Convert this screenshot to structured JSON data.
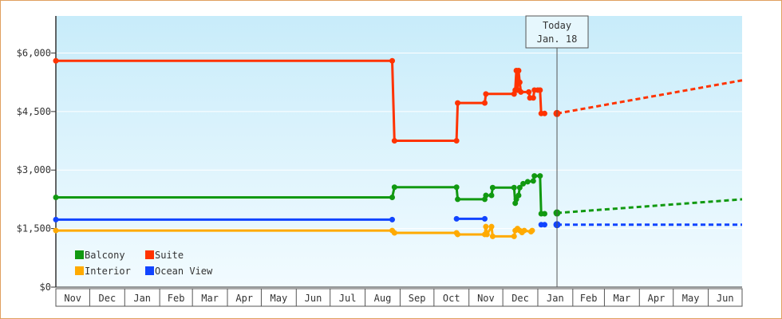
{
  "chart_data": {
    "type": "line",
    "today": {
      "date": "2025-01-18",
      "label_line1": "Today",
      "label_line2": "Jan. 18"
    },
    "y_ticks": [
      "$0",
      "$1,500",
      "$3,000",
      "$4,500",
      "$6,000"
    ],
    "y_tick_values": [
      0,
      1500,
      3000,
      4500,
      6000
    ],
    "ylim": [
      0,
      6950
    ],
    "x_months": [
      "Nov",
      "Dec",
      "Jan",
      "Feb",
      "Mar",
      "Apr",
      "May",
      "Jun",
      "Jul",
      "Aug",
      "Sep",
      "Oct",
      "Nov",
      "Dec",
      "Jan",
      "Feb",
      "Mar",
      "Apr",
      "May",
      "Jun"
    ],
    "x_month_starts": [
      "2023-11-01",
      "2023-12-01",
      "2024-01-01",
      "2024-02-01",
      "2024-03-01",
      "2024-04-01",
      "2024-05-01",
      "2024-06-01",
      "2024-07-01",
      "2024-08-01",
      "2024-09-01",
      "2024-10-01",
      "2024-11-01",
      "2024-12-01",
      "2025-01-01",
      "2025-02-01",
      "2025-03-01",
      "2025-04-01",
      "2025-05-01",
      "2025-06-01"
    ],
    "xlim": [
      "2023-11-01",
      "2025-07-01"
    ],
    "grid": true,
    "legend_position": "bottom-left",
    "series": [
      {
        "name": "Suite",
        "color": "#ff3300",
        "points": [
          [
            "2023-11-01",
            5800
          ],
          [
            "2024-08-25",
            5800
          ],
          [
            "2024-08-27",
            3750
          ],
          [
            "2024-10-21",
            3750
          ],
          [
            "2024-10-22",
            4720
          ],
          [
            "2024-11-15",
            4720
          ],
          [
            "2024-11-16",
            4950
          ],
          [
            "2024-12-11",
            4950
          ],
          [
            "2024-12-12",
            5050
          ],
          [
            "2024-12-13",
            5550
          ],
          [
            "2024-12-14",
            5050
          ],
          [
            "2024-12-15",
            5550
          ],
          [
            "2024-12-16",
            5250
          ],
          [
            "2024-12-17",
            5000
          ],
          [
            "2024-12-24",
            5000
          ],
          [
            "2024-12-25",
            4850
          ],
          [
            "2024-12-28",
            4850
          ],
          [
            "2024-12-29",
            5050
          ],
          [
            "2025-01-01",
            5050
          ],
          [
            "2025-01-03",
            5050
          ],
          [
            "2025-01-04",
            4450
          ],
          [
            "2025-01-07",
            4450
          ]
        ],
        "projection": [
          [
            "2025-01-18",
            4450
          ],
          [
            "2025-07-01",
            5300
          ]
        ]
      },
      {
        "name": "Balcony",
        "color": "#119911",
        "points": [
          [
            "2023-11-01",
            2300
          ],
          [
            "2024-08-25",
            2300
          ],
          [
            "2024-08-27",
            2560
          ],
          [
            "2024-10-21",
            2560
          ],
          [
            "2024-10-22",
            2250
          ],
          [
            "2024-11-15",
            2250
          ],
          [
            "2024-11-16",
            2350
          ],
          [
            "2024-11-21",
            2350
          ],
          [
            "2024-11-22",
            2550
          ],
          [
            "2024-12-11",
            2550
          ],
          [
            "2024-12-12",
            2150
          ],
          [
            "2024-12-13",
            2250
          ],
          [
            "2024-12-15",
            2350
          ],
          [
            "2024-12-16",
            2550
          ],
          [
            "2024-12-19",
            2650
          ],
          [
            "2024-12-23",
            2700
          ],
          [
            "2024-12-28",
            2720
          ],
          [
            "2024-12-29",
            2850
          ],
          [
            "2025-01-03",
            2850
          ],
          [
            "2025-01-04",
            1880
          ],
          [
            "2025-01-07",
            1880
          ]
        ],
        "projection": [
          [
            "2025-01-18",
            1900
          ],
          [
            "2025-07-01",
            2250
          ]
        ]
      },
      {
        "name": "Ocean View",
        "color": "#1144ff",
        "points": [
          [
            "2023-11-01",
            1730
          ],
          [
            "2024-08-25",
            1730
          ],
          null,
          [
            "2024-10-21",
            1750
          ],
          [
            "2024-11-15",
            1750
          ],
          null,
          [
            "2025-01-04",
            1600
          ],
          [
            "2025-01-07",
            1600
          ]
        ],
        "projection": [
          [
            "2025-01-18",
            1600
          ],
          [
            "2025-07-01",
            1600
          ]
        ]
      },
      {
        "name": "Interior",
        "color": "#ffaa00",
        "points": [
          [
            "2023-11-01",
            1450
          ],
          [
            "2024-08-25",
            1450
          ],
          [
            "2024-08-27",
            1390
          ],
          [
            "2024-10-21",
            1390
          ],
          [
            "2024-10-22",
            1350
          ],
          [
            "2024-11-15",
            1350
          ],
          [
            "2024-11-16",
            1550
          ],
          [
            "2024-11-17",
            1350
          ],
          [
            "2024-11-21",
            1550
          ],
          [
            "2024-11-22",
            1300
          ],
          [
            "2024-12-11",
            1300
          ],
          [
            "2024-12-12",
            1450
          ],
          [
            "2024-12-14",
            1500
          ],
          [
            "2024-12-16",
            1450
          ],
          [
            "2024-12-18",
            1400
          ],
          [
            "2024-12-20",
            1450
          ],
          [
            "2024-12-26",
            1420
          ],
          [
            "2024-12-27",
            1450
          ]
        ],
        "projection": []
      }
    ],
    "legend": [
      {
        "name": "Balcony",
        "color": "#119911"
      },
      {
        "name": "Suite",
        "color": "#ff3300"
      },
      {
        "name": "Interior",
        "color": "#ffaa00"
      },
      {
        "name": "Ocean View",
        "color": "#1144ff"
      }
    ]
  }
}
